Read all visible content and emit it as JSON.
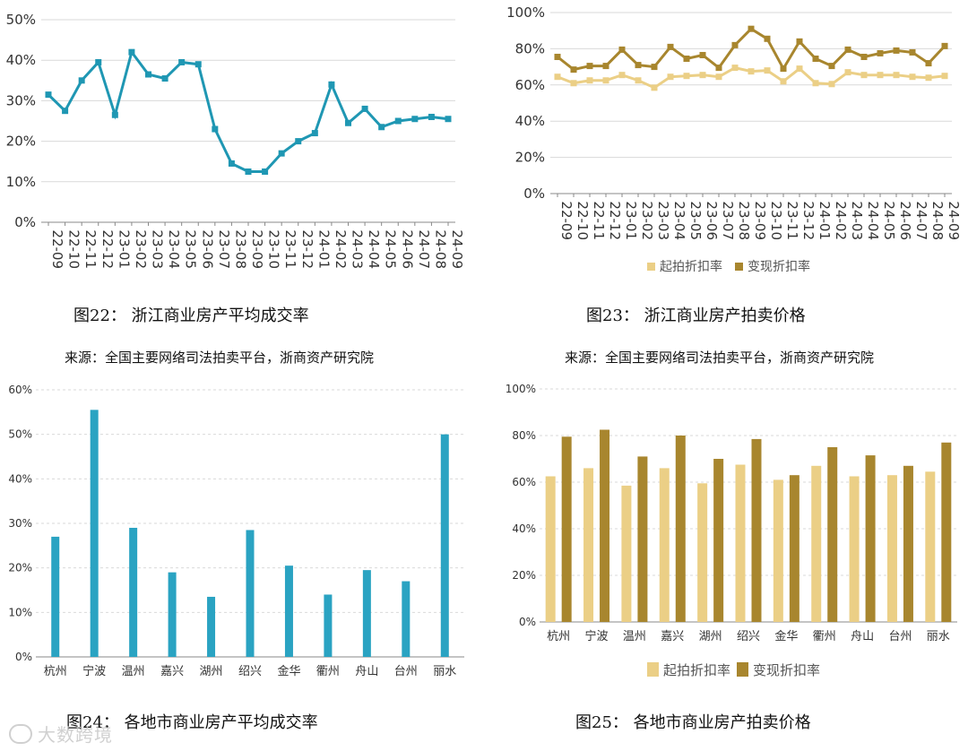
{
  "colors": {
    "teal_line": "#1f97b3",
    "teal_bar": "#2aa3c2",
    "light_gold": "#ebcf86",
    "dark_gold": "#a8862e",
    "grid": "#d9d9d9",
    "axis": "#888888"
  },
  "captions": {
    "c22": "图22： 浙江商业房产平均成交率",
    "c23": "图23： 浙江商业房产拍卖价格",
    "c24": "图24： 各地市商业房产平均成交率",
    "c25": "图25： 各地市商业房产拍卖价格"
  },
  "sources": {
    "s22": "来源：全国主要网络司法拍卖平台，浙商资产研究院",
    "s23": "来源：全国主要网络司法拍卖平台，浙商资产研究院"
  },
  "watermark": "大数跨境",
  "chart_data": [
    {
      "id": "fig22",
      "type": "line",
      "x": [
        "22-09",
        "22-10",
        "22-11",
        "22-12",
        "23-01",
        "23-02",
        "23-03",
        "23-04",
        "23-05",
        "23-06",
        "23-07",
        "23-08",
        "23-09",
        "23-10",
        "23-11",
        "23-12",
        "24-01",
        "24-02",
        "24-03",
        "24-04",
        "24-05",
        "24-06",
        "24-07",
        "24-08",
        "24-09"
      ],
      "series": [
        {
          "values": [
            31.5,
            27.5,
            35,
            39.5,
            26.5,
            42,
            36.5,
            35.5,
            39.5,
            39,
            23,
            14.5,
            12.5,
            12.5,
            17,
            20,
            22,
            34,
            24.5,
            28,
            23.5,
            25,
            25.5,
            26,
            25.5
          ]
        }
      ],
      "y_ticks": [
        "0%",
        "10%",
        "20%",
        "30%",
        "40%",
        "50%"
      ],
      "ylim": [
        0,
        50
      ],
      "grid": "horizontal",
      "legend": "none"
    },
    {
      "id": "fig23",
      "type": "line",
      "x": [
        "22-09",
        "22-10",
        "22-11",
        "22-12",
        "23-01",
        "23-02",
        "23-03",
        "23-04",
        "23-05",
        "23-06",
        "23-07",
        "23-08",
        "23-09",
        "23-10",
        "23-11",
        "23-12",
        "24-01",
        "24-02",
        "24-03",
        "24-04",
        "24-05",
        "24-06",
        "24-07",
        "24-08",
        "24-09"
      ],
      "series": [
        {
          "name": "起拍折扣率",
          "values": [
            64.5,
            61,
            62.5,
            62.5,
            65.5,
            62.5,
            58.5,
            64.5,
            65,
            65.5,
            64.5,
            69.5,
            67.5,
            68,
            62,
            69,
            61,
            60.5,
            67,
            65.5,
            65.5,
            65.5,
            64.5,
            64,
            65
          ]
        },
        {
          "name": "变现折扣率",
          "values": [
            75.5,
            68.5,
            70.5,
            70.5,
            79.5,
            71,
            70,
            81,
            74.5,
            76.5,
            69.5,
            82,
            91,
            85.5,
            69,
            84,
            74.5,
            70.5,
            79.5,
            75.5,
            77.5,
            79,
            78,
            72,
            81.5
          ]
        }
      ],
      "y_ticks": [
        "0%",
        "20%",
        "40%",
        "60%",
        "80%",
        "100%"
      ],
      "ylim": [
        0,
        100
      ],
      "grid": "horizontal",
      "legend": "bottom"
    },
    {
      "id": "fig24",
      "type": "bar",
      "categories": [
        "杭州",
        "宁波",
        "温州",
        "嘉兴",
        "湖州",
        "绍兴",
        "金华",
        "衢州",
        "舟山",
        "台州",
        "丽水"
      ],
      "series": [
        {
          "values": [
            27,
            55.5,
            29,
            19,
            13.5,
            28.5,
            20.5,
            14,
            19.5,
            17,
            50
          ]
        }
      ],
      "y_ticks": [
        "0%",
        "10%",
        "20%",
        "30%",
        "40%",
        "50%",
        "60%"
      ],
      "ylim": [
        0,
        60
      ],
      "grid": "horizontal",
      "legend": "none"
    },
    {
      "id": "fig25",
      "type": "bar",
      "categories": [
        "杭州",
        "宁波",
        "温州",
        "嘉兴",
        "湖州",
        "绍兴",
        "金华",
        "衢州",
        "舟山",
        "台州",
        "丽水"
      ],
      "series": [
        {
          "name": "起拍折扣率",
          "values": [
            62.5,
            66,
            58.5,
            66,
            59.5,
            67.5,
            61,
            67,
            62.5,
            63,
            64.5
          ]
        },
        {
          "name": "变现折扣率",
          "values": [
            79.5,
            82.5,
            71,
            80,
            70,
            78.5,
            63,
            75,
            71.5,
            67,
            77
          ]
        }
      ],
      "y_ticks": [
        "0%",
        "20%",
        "40%",
        "60%",
        "80%",
        "100%"
      ],
      "ylim": [
        0,
        100
      ],
      "grid": "horizontal",
      "legend": "bottom"
    }
  ]
}
